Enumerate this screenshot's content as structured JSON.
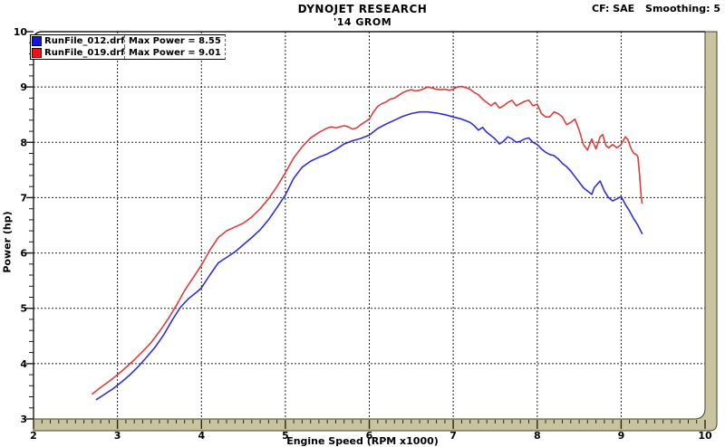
{
  "colors": {
    "background": "#ffffff",
    "frame_line": "#1a1a1a",
    "grid_line": "#222222",
    "axis_band": "#c8c49f",
    "axis_band_edge": "#45422e",
    "tick_mark": "#2a2818",
    "blue_series": "#2f2fd8",
    "red_series": "#e03c3c"
  },
  "chart_data": {
    "type": "line",
    "title": "DYNOJET RESEARCH",
    "subtitle": "'14 GROM",
    "correction_factor": "CF: SAE",
    "smoothing": "Smoothing: 5",
    "xlabel": "Engine Speed (RPM x1000)",
    "ylabel": "Power (hp)",
    "xlim": [
      2,
      10
    ],
    "ylim": [
      3,
      10
    ],
    "x_major_ticks": [
      2,
      3,
      4,
      5,
      6,
      7,
      8,
      9,
      10
    ],
    "x_minor_step": 0.1,
    "y_major_ticks": [
      3,
      4,
      5,
      6,
      7,
      8,
      9,
      10
    ],
    "y_minor_step": 0.2,
    "grid": "dashed black lines at major ticks",
    "legend_position": "top-left",
    "series": [
      {
        "name": "RunFile_012.drf",
        "max_label": "Max Power = 8.55",
        "max_power": 8.55,
        "color": "#2f2fd8",
        "chip_color": "#1414e0",
        "points": [
          [
            2.75,
            3.35
          ],
          [
            2.85,
            3.45
          ],
          [
            2.95,
            3.55
          ],
          [
            3.05,
            3.67
          ],
          [
            3.15,
            3.8
          ],
          [
            3.25,
            3.95
          ],
          [
            3.35,
            4.12
          ],
          [
            3.45,
            4.3
          ],
          [
            3.55,
            4.52
          ],
          [
            3.65,
            4.78
          ],
          [
            3.75,
            5.02
          ],
          [
            3.85,
            5.18
          ],
          [
            3.95,
            5.3
          ],
          [
            4.0,
            5.37
          ],
          [
            4.1,
            5.6
          ],
          [
            4.2,
            5.82
          ],
          [
            4.3,
            5.92
          ],
          [
            4.4,
            6.02
          ],
          [
            4.5,
            6.15
          ],
          [
            4.6,
            6.28
          ],
          [
            4.7,
            6.42
          ],
          [
            4.8,
            6.6
          ],
          [
            4.9,
            6.82
          ],
          [
            5.0,
            7.05
          ],
          [
            5.1,
            7.35
          ],
          [
            5.2,
            7.55
          ],
          [
            5.3,
            7.66
          ],
          [
            5.4,
            7.73
          ],
          [
            5.5,
            7.79
          ],
          [
            5.6,
            7.87
          ],
          [
            5.7,
            7.97
          ],
          [
            5.8,
            8.03
          ],
          [
            5.9,
            8.07
          ],
          [
            6.0,
            8.13
          ],
          [
            6.1,
            8.25
          ],
          [
            6.2,
            8.33
          ],
          [
            6.3,
            8.4
          ],
          [
            6.4,
            8.47
          ],
          [
            6.5,
            8.52
          ],
          [
            6.6,
            8.55
          ],
          [
            6.7,
            8.55
          ],
          [
            6.8,
            8.53
          ],
          [
            6.9,
            8.5
          ],
          [
            7.0,
            8.46
          ],
          [
            7.1,
            8.42
          ],
          [
            7.2,
            8.36
          ],
          [
            7.25,
            8.3
          ],
          [
            7.3,
            8.22
          ],
          [
            7.35,
            8.27
          ],
          [
            7.4,
            8.18
          ],
          [
            7.45,
            8.12
          ],
          [
            7.5,
            8.06
          ],
          [
            7.55,
            7.97
          ],
          [
            7.6,
            8.02
          ],
          [
            7.65,
            8.1
          ],
          [
            7.7,
            8.06
          ],
          [
            7.75,
            8.0
          ],
          [
            7.8,
            8.02
          ],
          [
            7.85,
            8.06
          ],
          [
            7.9,
            8.08
          ],
          [
            7.95,
            8.0
          ],
          [
            8.0,
            7.96
          ],
          [
            8.05,
            7.88
          ],
          [
            8.1,
            7.82
          ],
          [
            8.15,
            7.78
          ],
          [
            8.2,
            7.76
          ],
          [
            8.25,
            7.7
          ],
          [
            8.3,
            7.62
          ],
          [
            8.35,
            7.56
          ],
          [
            8.4,
            7.48
          ],
          [
            8.45,
            7.38
          ],
          [
            8.5,
            7.28
          ],
          [
            8.55,
            7.18
          ],
          [
            8.6,
            7.12
          ],
          [
            8.65,
            7.06
          ],
          [
            8.68,
            7.18
          ],
          [
            8.72,
            7.25
          ],
          [
            8.75,
            7.3
          ],
          [
            8.8,
            7.12
          ],
          [
            8.85,
            7.0
          ],
          [
            8.9,
            6.94
          ],
          [
            8.95,
            6.98
          ],
          [
            9.0,
            7.02
          ],
          [
            9.05,
            6.88
          ],
          [
            9.1,
            6.76
          ],
          [
            9.15,
            6.62
          ],
          [
            9.2,
            6.5
          ],
          [
            9.25,
            6.35
          ]
        ]
      },
      {
        "name": "RunFile_019.drf",
        "max_label": "Max Power = 9.01",
        "max_power": 9.01,
        "color": "#e03c3c",
        "chip_color": "#ee1212",
        "points": [
          [
            2.7,
            3.45
          ],
          [
            2.8,
            3.57
          ],
          [
            2.9,
            3.68
          ],
          [
            3.0,
            3.8
          ],
          [
            3.1,
            3.93
          ],
          [
            3.2,
            4.07
          ],
          [
            3.3,
            4.22
          ],
          [
            3.4,
            4.38
          ],
          [
            3.5,
            4.58
          ],
          [
            3.6,
            4.8
          ],
          [
            3.7,
            5.05
          ],
          [
            3.8,
            5.32
          ],
          [
            3.9,
            5.55
          ],
          [
            4.0,
            5.78
          ],
          [
            4.1,
            6.05
          ],
          [
            4.2,
            6.28
          ],
          [
            4.3,
            6.4
          ],
          [
            4.4,
            6.47
          ],
          [
            4.5,
            6.54
          ],
          [
            4.6,
            6.65
          ],
          [
            4.7,
            6.8
          ],
          [
            4.8,
            6.98
          ],
          [
            4.9,
            7.2
          ],
          [
            5.0,
            7.45
          ],
          [
            5.1,
            7.72
          ],
          [
            5.2,
            7.92
          ],
          [
            5.25,
            8.0
          ],
          [
            5.3,
            8.08
          ],
          [
            5.4,
            8.18
          ],
          [
            5.5,
            8.26
          ],
          [
            5.55,
            8.28
          ],
          [
            5.6,
            8.26
          ],
          [
            5.7,
            8.3
          ],
          [
            5.75,
            8.28
          ],
          [
            5.8,
            8.24
          ],
          [
            5.85,
            8.26
          ],
          [
            5.9,
            8.32
          ],
          [
            6.0,
            8.42
          ],
          [
            6.05,
            8.55
          ],
          [
            6.1,
            8.65
          ],
          [
            6.15,
            8.7
          ],
          [
            6.2,
            8.73
          ],
          [
            6.25,
            8.78
          ],
          [
            6.3,
            8.8
          ],
          [
            6.35,
            8.85
          ],
          [
            6.4,
            8.9
          ],
          [
            6.45,
            8.93
          ],
          [
            6.5,
            8.95
          ],
          [
            6.55,
            8.93
          ],
          [
            6.6,
            8.94
          ],
          [
            6.65,
            8.97
          ],
          [
            6.7,
            9.0
          ],
          [
            6.75,
            8.98
          ],
          [
            6.8,
            8.96
          ],
          [
            6.85,
            8.95
          ],
          [
            6.9,
            8.96
          ],
          [
            6.95,
            8.94
          ],
          [
            7.0,
            8.96
          ],
          [
            7.05,
            9.0
          ],
          [
            7.1,
            9.01
          ],
          [
            7.15,
            8.99
          ],
          [
            7.2,
            8.96
          ],
          [
            7.25,
            8.9
          ],
          [
            7.3,
            8.86
          ],
          [
            7.35,
            8.78
          ],
          [
            7.4,
            8.72
          ],
          [
            7.45,
            8.66
          ],
          [
            7.5,
            8.72
          ],
          [
            7.55,
            8.62
          ],
          [
            7.6,
            8.66
          ],
          [
            7.65,
            8.72
          ],
          [
            7.7,
            8.76
          ],
          [
            7.75,
            8.66
          ],
          [
            7.8,
            8.7
          ],
          [
            7.85,
            8.74
          ],
          [
            7.9,
            8.76
          ],
          [
            7.95,
            8.66
          ],
          [
            8.0,
            8.69
          ],
          [
            8.05,
            8.52
          ],
          [
            8.1,
            8.46
          ],
          [
            8.15,
            8.46
          ],
          [
            8.2,
            8.55
          ],
          [
            8.25,
            8.52
          ],
          [
            8.3,
            8.46
          ],
          [
            8.35,
            8.32
          ],
          [
            8.4,
            8.36
          ],
          [
            8.45,
            8.42
          ],
          [
            8.5,
            8.22
          ],
          [
            8.55,
            7.96
          ],
          [
            8.6,
            7.86
          ],
          [
            8.65,
            8.06
          ],
          [
            8.7,
            7.88
          ],
          [
            8.75,
            8.1
          ],
          [
            8.78,
            8.14
          ],
          [
            8.82,
            7.94
          ],
          [
            8.85,
            7.9
          ],
          [
            8.9,
            7.96
          ],
          [
            8.95,
            7.9
          ],
          [
            9.0,
            7.96
          ],
          [
            9.05,
            8.1
          ],
          [
            9.08,
            8.05
          ],
          [
            9.12,
            7.88
          ],
          [
            9.15,
            7.8
          ],
          [
            9.18,
            7.78
          ],
          [
            9.2,
            7.74
          ],
          [
            9.22,
            7.4
          ],
          [
            9.24,
            7.0
          ],
          [
            9.25,
            6.9
          ]
        ]
      }
    ]
  }
}
